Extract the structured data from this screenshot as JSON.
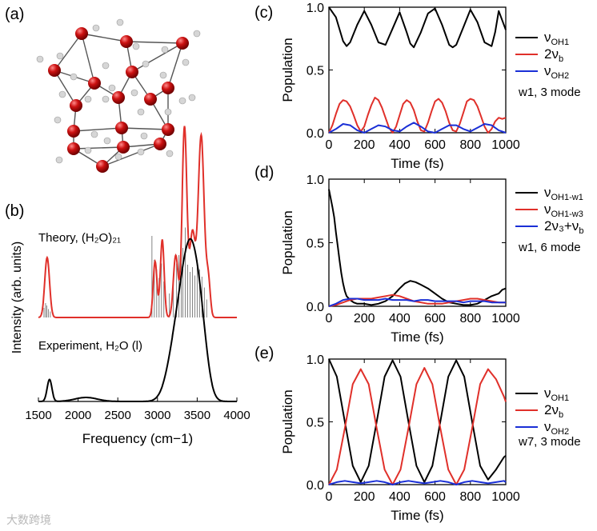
{
  "colors": {
    "black": "#000000",
    "red": "#e0302a",
    "blue": "#1a2fd6",
    "atom_o": "#cc1111",
    "atom_h": "#d6d6d6",
    "bond": "#555555"
  },
  "panels": {
    "a": {
      "label": "(a)"
    },
    "b": {
      "label": "(b)",
      "ylabel": "Intensity (arb. units)",
      "theory_label": "Theory, (H₂O)₂₁",
      "experiment_label": "Experiment, H₂O (l)"
    },
    "c": {
      "label": "(c)",
      "annotation": "w1, 3 mode"
    },
    "d": {
      "label": "(d)",
      "annotation": "w1, 6 mode"
    },
    "e": {
      "label": "(e)",
      "annotation": "w7, 3 mode"
    }
  },
  "watermark": "大数跨境",
  "chart_data": [
    {
      "id": "b",
      "type": "line",
      "title": "",
      "xlabel": "Frequency (cm−1)",
      "ylabel": "Intensity (arb. units)",
      "xlim": [
        1500,
        4000
      ],
      "xticks": [
        1500,
        2000,
        2500,
        3000,
        3500,
        4000
      ],
      "xtick_labels": [
        "1500",
        "2000",
        "2500",
        "3000",
        "3500",
        "4000"
      ],
      "series": [
        {
          "name": "Theory (H2O)21",
          "color": "red",
          "offset": 0.42,
          "peaks": [
            [
              1610,
              0.3,
              30
            ],
            [
              2970,
              0.28,
              24
            ],
            [
              3060,
              0.39,
              24
            ],
            [
              3230,
              0.31,
              30
            ],
            [
              3340,
              0.95,
              30
            ],
            [
              3440,
              0.42,
              35
            ],
            [
              3550,
              0.91,
              38
            ],
            [
              3640,
              0.18,
              25
            ]
          ]
        },
        {
          "name": "Theory stick spectrum",
          "color": "gray",
          "type": "stick",
          "sticks": [
            [
              1570,
              0.08
            ],
            [
              1590,
              0.12
            ],
            [
              1605,
              0.1
            ],
            [
              1625,
              0.07
            ],
            [
              1650,
              0.05
            ],
            [
              2930,
              0.68
            ],
            [
              2960,
              0.48
            ],
            [
              2990,
              0.4
            ],
            [
              3020,
              0.33
            ],
            [
              3050,
              0.45
            ],
            [
              3080,
              0.3
            ],
            [
              3150,
              0.2
            ],
            [
              3200,
              0.28
            ],
            [
              3240,
              0.45
            ],
            [
              3270,
              0.52
            ],
            [
              3300,
              0.62
            ],
            [
              3320,
              0.58
            ],
            [
              3350,
              0.75
            ],
            [
              3380,
              0.44
            ],
            [
              3410,
              0.38
            ],
            [
              3440,
              0.42
            ],
            [
              3470,
              0.35
            ],
            [
              3500,
              0.48
            ],
            [
              3530,
              0.4
            ],
            [
              3560,
              0.34
            ],
            [
              3590,
              0.25
            ],
            [
              3620,
              0.15
            ]
          ]
        },
        {
          "name": "Experiment H2O (l)",
          "color": "black",
          "offset": 0.0,
          "peaks": [
            [
              1640,
              0.11,
              30
            ],
            [
              2100,
              0.02,
              140
            ],
            [
              3240,
              0.28,
              110
            ],
            [
              3420,
              0.7,
              110
            ],
            [
              3560,
              0.18,
              80
            ]
          ]
        }
      ]
    },
    {
      "id": "c",
      "type": "line",
      "xlabel": "Time (fs)",
      "ylabel": "Population",
      "xlim": [
        0,
        1000
      ],
      "ylim": [
        0,
        1.0
      ],
      "xticks": [
        0,
        200,
        400,
        600,
        800,
        1000
      ],
      "xtick_labels": [
        "0",
        "200",
        "400",
        "600",
        "800",
        "1000"
      ],
      "yticks": [
        0,
        0.5,
        1.0
      ],
      "ytick_labels": [
        "0.0",
        "0.5",
        "1.0"
      ],
      "series": [
        {
          "name": "νOH1",
          "color": "black",
          "x": [
            0,
            40,
            80,
            100,
            120,
            160,
            200,
            240,
            280,
            320,
            360,
            400,
            440,
            460,
            480,
            520,
            560,
            600,
            640,
            680,
            700,
            720,
            760,
            800,
            840,
            880,
            920,
            940,
            960,
            1000
          ],
          "y": [
            1.0,
            0.92,
            0.73,
            0.69,
            0.72,
            0.86,
            0.97,
            0.86,
            0.72,
            0.7,
            0.83,
            0.96,
            0.8,
            0.71,
            0.68,
            0.8,
            0.95,
            0.99,
            0.86,
            0.7,
            0.68,
            0.7,
            0.84,
            0.98,
            0.88,
            0.72,
            0.69,
            0.8,
            0.97,
            0.82
          ]
        },
        {
          "name": "2νb",
          "color": "red",
          "x": [
            0,
            20,
            40,
            60,
            80,
            100,
            120,
            140,
            160,
            180,
            200,
            220,
            240,
            260,
            280,
            300,
            320,
            340,
            360,
            380,
            400,
            420,
            440,
            460,
            480,
            500,
            520,
            540,
            560,
            580,
            600,
            620,
            640,
            660,
            680,
            700,
            720,
            740,
            760,
            780,
            800,
            820,
            840,
            860,
            880,
            900,
            920,
            940,
            960,
            980,
            1000
          ],
          "y": [
            0.0,
            0.06,
            0.15,
            0.23,
            0.26,
            0.25,
            0.21,
            0.14,
            0.06,
            0.01,
            0.05,
            0.14,
            0.22,
            0.28,
            0.26,
            0.2,
            0.12,
            0.04,
            0.0,
            0.05,
            0.14,
            0.23,
            0.26,
            0.24,
            0.18,
            0.09,
            0.02,
            0.01,
            0.08,
            0.17,
            0.25,
            0.27,
            0.24,
            0.17,
            0.08,
            0.02,
            0.01,
            0.07,
            0.16,
            0.25,
            0.27,
            0.26,
            0.21,
            0.13,
            0.05,
            0.0,
            0.03,
            0.09,
            0.12,
            0.11,
            0.12
          ]
        },
        {
          "name": "νOH2",
          "color": "blue",
          "x": [
            0,
            40,
            80,
            120,
            160,
            200,
            240,
            280,
            320,
            360,
            400,
            440,
            480,
            520,
            560,
            600,
            640,
            680,
            720,
            760,
            800,
            840,
            880,
            920,
            960,
            1000
          ],
          "y": [
            0.0,
            0.03,
            0.07,
            0.06,
            0.02,
            0.0,
            0.03,
            0.06,
            0.05,
            0.02,
            0.01,
            0.05,
            0.08,
            0.05,
            0.01,
            0.0,
            0.03,
            0.06,
            0.06,
            0.03,
            0.01,
            0.04,
            0.07,
            0.06,
            0.02,
            0.0
          ]
        }
      ]
    },
    {
      "id": "d",
      "type": "line",
      "xlabel": "Time (fs)",
      "ylabel": "Population",
      "xlim": [
        0,
        1000
      ],
      "ylim": [
        0,
        1.0
      ],
      "xticks": [
        0,
        200,
        400,
        600,
        800,
        1000
      ],
      "xtick_labels": [
        "0",
        "200",
        "400",
        "600",
        "800",
        "1000"
      ],
      "yticks": [
        0,
        0.5,
        1.0
      ],
      "ytick_labels": [
        "0.0",
        "0.5",
        "1.0"
      ],
      "series": [
        {
          "name": "νOH1-w1",
          "color": "black",
          "x": [
            0,
            10,
            20,
            30,
            40,
            50,
            60,
            70,
            80,
            90,
            100,
            120,
            140,
            160,
            180,
            200,
            240,
            280,
            320,
            360,
            400,
            430,
            460,
            490,
            520,
            560,
            600,
            640,
            680,
            720,
            760,
            800,
            840,
            880,
            920,
            960,
            980,
            1000
          ],
          "y": [
            0.92,
            0.85,
            0.78,
            0.7,
            0.58,
            0.47,
            0.36,
            0.26,
            0.18,
            0.12,
            0.08,
            0.05,
            0.03,
            0.02,
            0.02,
            0.02,
            0.01,
            0.02,
            0.04,
            0.08,
            0.14,
            0.18,
            0.2,
            0.19,
            0.17,
            0.14,
            0.1,
            0.06,
            0.03,
            0.02,
            0.01,
            0.01,
            0.02,
            0.05,
            0.08,
            0.1,
            0.13,
            0.14
          ]
        },
        {
          "name": "νOH1-w3",
          "color": "red",
          "x": [
            0,
            40,
            80,
            120,
            160,
            200,
            240,
            280,
            320,
            360,
            400,
            440,
            480,
            520,
            560,
            600,
            640,
            680,
            720,
            760,
            800,
            840,
            880,
            920,
            960,
            1000
          ],
          "y": [
            0.0,
            0.01,
            0.03,
            0.05,
            0.06,
            0.06,
            0.06,
            0.07,
            0.08,
            0.09,
            0.08,
            0.06,
            0.04,
            0.03,
            0.02,
            0.02,
            0.02,
            0.03,
            0.04,
            0.05,
            0.06,
            0.06,
            0.05,
            0.04,
            0.03,
            0.03
          ]
        },
        {
          "name": "2ν3+νb",
          "color": "blue",
          "x": [
            0,
            40,
            80,
            120,
            160,
            200,
            240,
            280,
            320,
            360,
            400,
            440,
            480,
            520,
            560,
            600,
            640,
            680,
            720,
            760,
            800,
            840,
            880,
            920,
            960,
            1000
          ],
          "y": [
            0.0,
            0.02,
            0.05,
            0.06,
            0.06,
            0.05,
            0.05,
            0.05,
            0.06,
            0.05,
            0.05,
            0.05,
            0.04,
            0.05,
            0.05,
            0.04,
            0.04,
            0.04,
            0.04,
            0.03,
            0.04,
            0.04,
            0.04,
            0.03,
            0.03,
            0.03
          ]
        }
      ]
    },
    {
      "id": "e",
      "type": "line",
      "xlabel": "Time (fs)",
      "ylabel": "Population",
      "xlim": [
        0,
        1000
      ],
      "ylim": [
        0,
        1.0
      ],
      "xticks": [
        0,
        200,
        400,
        600,
        800,
        1000
      ],
      "xtick_labels": [
        "0",
        "200",
        "400",
        "600",
        "800",
        "1000"
      ],
      "yticks": [
        0,
        0.5,
        1.0
      ],
      "ytick_labels": [
        "0.0",
        "0.5",
        "1.0"
      ],
      "series": [
        {
          "name": "νOH1",
          "color": "black",
          "x": [
            0,
            45,
            90,
            135,
            180,
            225,
            270,
            315,
            360,
            405,
            450,
            495,
            540,
            585,
            630,
            675,
            720,
            765,
            810,
            855,
            900,
            945,
            990,
            1000
          ],
          "y": [
            1.0,
            0.86,
            0.5,
            0.15,
            0.02,
            0.15,
            0.5,
            0.86,
            0.99,
            0.86,
            0.5,
            0.15,
            0.02,
            0.15,
            0.5,
            0.86,
            0.99,
            0.86,
            0.5,
            0.15,
            0.04,
            0.12,
            0.22,
            0.23
          ]
        },
        {
          "name": "2νb",
          "color": "red",
          "x": [
            0,
            45,
            90,
            135,
            180,
            225,
            270,
            315,
            360,
            405,
            450,
            495,
            540,
            585,
            630,
            675,
            720,
            765,
            810,
            855,
            900,
            945,
            990,
            1000
          ],
          "y": [
            0.0,
            0.12,
            0.45,
            0.8,
            0.92,
            0.8,
            0.45,
            0.12,
            0.0,
            0.12,
            0.45,
            0.8,
            0.93,
            0.8,
            0.45,
            0.12,
            0.0,
            0.12,
            0.45,
            0.8,
            0.92,
            0.84,
            0.7,
            0.66
          ]
        },
        {
          "name": "νOH2",
          "color": "blue",
          "x": [
            0,
            45,
            90,
            135,
            180,
            225,
            270,
            315,
            360,
            405,
            450,
            495,
            540,
            585,
            630,
            675,
            720,
            765,
            810,
            855,
            900,
            945,
            990,
            1000
          ],
          "y": [
            0.0,
            0.02,
            0.03,
            0.02,
            0.01,
            0.02,
            0.03,
            0.02,
            0.0,
            0.02,
            0.03,
            0.02,
            0.01,
            0.02,
            0.03,
            0.02,
            0.0,
            0.02,
            0.03,
            0.02,
            0.01,
            0.02,
            0.03,
            0.02
          ]
        }
      ]
    }
  ],
  "legend_c": {
    "items": [
      [
        "ν",
        "OH1",
        "black"
      ],
      [
        "2ν",
        "b",
        "red"
      ],
      [
        "ν",
        "OH2",
        "blue"
      ]
    ]
  },
  "legend_d": {
    "items": [
      [
        "ν",
        "OH1-w1",
        "black"
      ],
      [
        "ν",
        "OH1-w3",
        "red"
      ],
      [
        "2ν₃+ν",
        "b",
        "blue"
      ]
    ]
  },
  "legend_e": {
    "items": [
      [
        "ν",
        "OH1",
        "black"
      ],
      [
        "2ν",
        "b",
        "red"
      ],
      [
        "ν",
        "OH2",
        "blue"
      ]
    ]
  }
}
